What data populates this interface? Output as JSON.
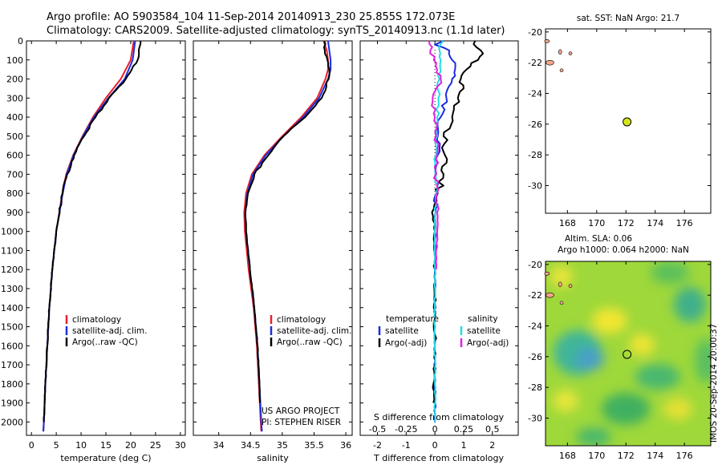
{
  "header": {
    "line1": "Argo profile: AO 5903584_104 11-Sep-2014 20140913_230 25.855S 172.073E",
    "line2": "Climatology: CARS2009. Satellite-adjusted climatology: synTS_20140913.nc (1.1d later)"
  },
  "colors": {
    "climatology": "#e8202a",
    "satellite": "#1a2ee0",
    "argo": "#000000",
    "salinity_sat": "#22dde6",
    "salinity_argo": "#e020e0",
    "float_marker": "#d4e41a",
    "land": "#f2a68a"
  },
  "notes": {
    "project_line1": "US ARGO PROJECT",
    "project_line2": "PI: STEPHEN RISER",
    "imos_stamp": "IMOS 20-Sep-2014 20:00:37"
  },
  "chart_data": [
    {
      "type": "line",
      "panel": "temperature",
      "xlabel": "temperature (deg C)",
      "ylabel": "",
      "xlim": [
        -1,
        31
      ],
      "ylim": [
        2070,
        0
      ],
      "xticks": [
        0,
        5,
        10,
        15,
        20,
        25,
        30
      ],
      "yticks": [
        0,
        100,
        200,
        300,
        400,
        500,
        600,
        700,
        800,
        900,
        1000,
        1100,
        1200,
        1300,
        1400,
        1500,
        1600,
        1700,
        1800,
        1900,
        2000
      ],
      "legend": [
        "climatology",
        "satellite-adj. clim.",
        "Argo(..raw -QC)"
      ],
      "series": [
        {
          "name": "climatology",
          "depth": [
            0,
            100,
            200,
            300,
            400,
            500,
            600,
            700,
            800,
            1000,
            1200,
            1400,
            1600,
            1800,
            2000,
            2050
          ],
          "values": [
            20.6,
            20.0,
            18.0,
            15.0,
            12.4,
            10.3,
            8.4,
            7.0,
            6.2,
            5.0,
            4.2,
            3.6,
            3.2,
            2.8,
            2.5,
            2.4
          ]
        },
        {
          "name": "satellite-adj. clim.",
          "depth": [
            0,
            100,
            200,
            300,
            400,
            500,
            600,
            700,
            800,
            1000,
            1200,
            1400,
            1600,
            1800,
            2000,
            2050
          ],
          "values": [
            20.9,
            20.4,
            18.8,
            15.5,
            12.6,
            10.4,
            8.5,
            7.1,
            6.3,
            5.0,
            4.2,
            3.6,
            3.2,
            2.8,
            2.5,
            2.4
          ]
        },
        {
          "name": "Argo(..raw -QC)",
          "depth": [
            0,
            30,
            100,
            150,
            200,
            300,
            400,
            500,
            600,
            650,
            700,
            800,
            1000,
            1200,
            1400,
            1600,
            1800,
            2000
          ],
          "values": [
            22.0,
            21.8,
            21.4,
            20.2,
            19.0,
            15.6,
            12.9,
            10.6,
            8.6,
            8.0,
            7.2,
            6.3,
            5.0,
            4.2,
            3.6,
            3.2,
            2.8,
            2.5
          ]
        }
      ]
    },
    {
      "type": "line",
      "panel": "salinity",
      "xlabel": "salinity",
      "xlim": [
        33.6,
        36.1
      ],
      "ylim": [
        2070,
        0
      ],
      "xticks": [
        34,
        34.5,
        35,
        35.5,
        36
      ],
      "xticklabels": [
        "34",
        "34.5",
        "35",
        "35.5",
        "36"
      ],
      "legend": [
        "climatology",
        "satellite-adj. clim.",
        "Argo(..raw -QC)"
      ],
      "series": [
        {
          "name": "climatology",
          "depth": [
            0,
            50,
            100,
            150,
            200,
            300,
            400,
            500,
            600,
            700,
            800,
            900,
            1000,
            1200,
            1400,
            1600,
            1800,
            2000,
            2050
          ],
          "values": [
            35.65,
            35.7,
            35.72,
            35.72,
            35.68,
            35.55,
            35.3,
            35.0,
            34.72,
            34.52,
            34.43,
            34.4,
            34.41,
            34.47,
            34.55,
            34.6,
            34.63,
            34.66,
            34.67
          ]
        },
        {
          "name": "satellite-adj. clim.",
          "depth": [
            0,
            50,
            100,
            150,
            200,
            300,
            400,
            500,
            600,
            700,
            800,
            900,
            1000,
            1200,
            1400,
            1600,
            1800,
            2000,
            2050
          ],
          "values": [
            35.72,
            35.74,
            35.76,
            35.76,
            35.72,
            35.58,
            35.33,
            35.02,
            34.74,
            34.54,
            34.45,
            34.42,
            34.43,
            34.49,
            34.56,
            34.61,
            34.64,
            34.67,
            34.68
          ]
        },
        {
          "name": "Argo(..raw -QC)",
          "depth": [
            0,
            50,
            100,
            150,
            200,
            300,
            400,
            500,
            600,
            700,
            800,
            900,
            1000,
            1200,
            1400,
            1600,
            1800,
            1900
          ],
          "values": [
            35.66,
            35.67,
            35.71,
            35.74,
            35.73,
            35.62,
            35.36,
            35.02,
            34.78,
            34.56,
            34.46,
            34.42,
            34.43,
            34.49,
            34.56,
            34.61,
            34.64,
            34.65
          ]
        }
      ]
    },
    {
      "type": "line",
      "panel": "difference",
      "xlabel_top": "S difference from climatology",
      "xlabel_bottom": "T difference from climatology",
      "xlim": [
        -2.6,
        2.9
      ],
      "ylim": [
        2070,
        0
      ],
      "xticks_T": [
        -2,
        -1,
        0,
        1,
        2
      ],
      "xticks_S": [
        -0.5,
        -0.25,
        0,
        0.25,
        0.5
      ],
      "xticklabels_S": [
        "-0.5",
        "-0.25",
        "0",
        "0.25",
        "0.5"
      ],
      "legend_temperature_title": "temperature",
      "legend_salinity_title": "salinity",
      "legend": [
        "satellite",
        "Argo(-adj)",
        "satellite",
        "Argo(-adj)"
      ],
      "series": [
        {
          "name": "T satellite",
          "depth": [
            0,
            20,
            50,
            100,
            150,
            200,
            300,
            400,
            500,
            600,
            700,
            800,
            1000,
            1200,
            1600,
            2000
          ],
          "values": [
            0.3,
            0.0,
            0.5,
            0.6,
            0.7,
            0.6,
            0.4,
            0.2,
            0.1,
            0.1,
            0.05,
            0.05,
            0.0,
            0.0,
            0.0,
            0.0
          ]
        },
        {
          "name": "T Argo(-adj)",
          "depth": [
            0,
            50,
            100,
            150,
            200,
            250,
            300,
            400,
            500,
            600,
            700,
            800,
            900,
            1000,
            1200,
            1600,
            1800,
            1900
          ],
          "values": [
            1.4,
            1.6,
            1.5,
            1.1,
            0.9,
            1.0,
            0.8,
            0.6,
            0.3,
            0.35,
            0.3,
            0.1,
            -0.1,
            0.0,
            0.0,
            0.0,
            -0.05,
            -0.05
          ]
        },
        {
          "name": "S satellite",
          "depth": [
            0,
            50,
            100,
            200,
            300,
            400,
            500,
            600,
            800,
            1000,
            1200,
            1600,
            2000
          ],
          "values": [
            0.07,
            0.04,
            0.05,
            0.04,
            0.03,
            0.02,
            0.02,
            0.01,
            0.01,
            0.0,
            0.0,
            0.0,
            0.0
          ]
        },
        {
          "name": "S Argo(-adj)",
          "depth": [
            0,
            50,
            100,
            150,
            200,
            300,
            400,
            500,
            600,
            700,
            800,
            900,
            1000,
            1200
          ],
          "values": [
            -0.05,
            -0.04,
            -0.01,
            0.02,
            0.05,
            -0.02,
            0.0,
            0.01,
            0.02,
            0.01,
            0.02,
            0.02,
            0.02,
            0.01
          ]
        }
      ]
    },
    {
      "type": "scatter",
      "panel": "sst-map",
      "title": "sat. SST: NaN Argo: 21.7",
      "xlim": [
        166.5,
        177.8
      ],
      "ylim": [
        -31.8,
        -19.8
      ],
      "xticks": [
        168,
        170,
        172,
        174,
        176
      ],
      "yticks": [
        -20,
        -22,
        -24,
        -26,
        -28,
        -30
      ],
      "float_position": {
        "lon": 172.073,
        "lat": -25.855
      }
    },
    {
      "type": "heatmap",
      "panel": "sla-map",
      "title1": "Altim. SLA: 0.06",
      "title2": "Argo h1000: 0.064 h2000: NaN",
      "xlim": [
        166.5,
        177.8
      ],
      "ylim": [
        -31.8,
        -19.8
      ],
      "xticks": [
        168,
        170,
        172,
        174,
        176
      ],
      "yticks": [
        -20,
        -22,
        -24,
        -26,
        -28,
        -30
      ],
      "float_position": {
        "lon": 172.073,
        "lat": -25.855
      }
    }
  ]
}
